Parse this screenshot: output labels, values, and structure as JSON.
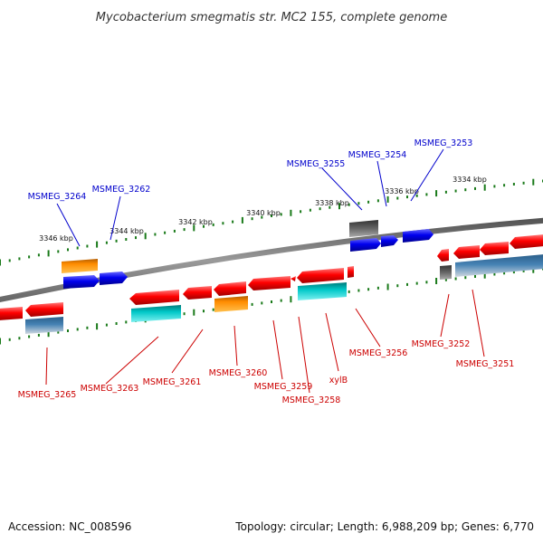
{
  "title": "Mycobacterium smegmatis str. MC2 155, complete genome",
  "footer": {
    "accession": "Accession: NC_008596",
    "summary": "Topology: circular; Length: 6,988,209 bp; Genes: 6,770"
  },
  "colors": {
    "forward_label": "#0000cc",
    "reverse_label": "#cc0000",
    "cds": "#ff0000",
    "cds_forward": "#0000ee",
    "trna": "#ff8c00",
    "rrna": "#00c8c8",
    "misc": "#555555",
    "region": "#4682b4",
    "backbone": "#888888",
    "ticks": "#1a7a1a"
  },
  "scale_ticks": [
    "3346 kbp",
    "3344 kbp",
    "3342 kbp",
    "3340 kbp",
    "3338 kbp",
    "3336 kbp",
    "3334 kbp"
  ],
  "forward_genes": [
    "MSMEG_3264",
    "MSMEG_3262",
    "MSMEG_3255",
    "MSMEG_3254",
    "MSMEG_3253"
  ],
  "reverse_genes": [
    "MSMEG_3265",
    "MSMEG_3263",
    "MSMEG_3261",
    "MSMEG_3260",
    "MSMEG_3259",
    "MSMEG_3258",
    "xylB",
    "MSMEG_3256",
    "MSMEG_3252",
    "MSMEG_3251"
  ]
}
